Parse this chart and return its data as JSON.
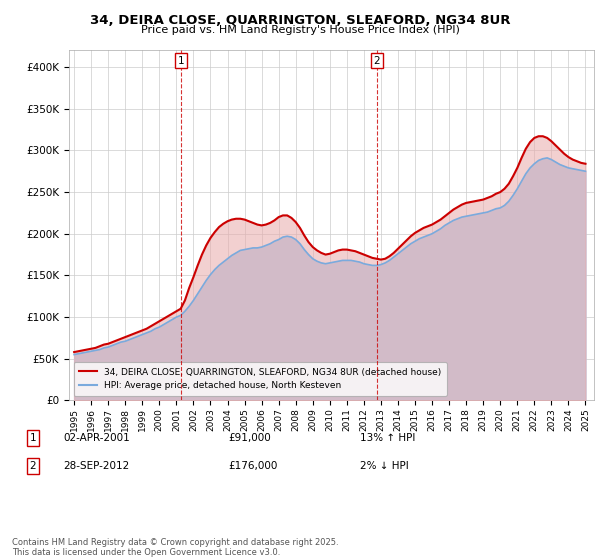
{
  "title": "34, DEIRA CLOSE, QUARRINGTON, SLEAFORD, NG34 8UR",
  "subtitle": "Price paid vs. HM Land Registry's House Price Index (HPI)",
  "yticks": [
    0,
    50000,
    100000,
    150000,
    200000,
    250000,
    300000,
    350000,
    400000
  ],
  "xlim_start": 1994.7,
  "xlim_end": 2025.5,
  "ylim": [
    0,
    420000
  ],
  "legend_label_red": "34, DEIRA CLOSE, QUARRINGTON, SLEAFORD, NG34 8UR (detached house)",
  "legend_label_blue": "HPI: Average price, detached house, North Kesteven",
  "footnote": "Contains HM Land Registry data © Crown copyright and database right 2025.\nThis data is licensed under the Open Government Licence v3.0.",
  "marker1_date": "02-APR-2001",
  "marker1_price": "£91,000",
  "marker1_pct": "13% ↑ HPI",
  "marker1_x": 2001.25,
  "marker2_date": "28-SEP-2012",
  "marker2_price": "£176,000",
  "marker2_pct": "2% ↓ HPI",
  "marker2_x": 2012.75,
  "red_color": "#cc0000",
  "blue_color": "#7aaadd",
  "red_fill": "#e8aaaa",
  "blue_fill": "#b8d0ee",
  "background_color": "#ffffff",
  "grid_color": "#cccccc",
  "hpi_years": [
    1995,
    1995.25,
    1995.5,
    1995.75,
    1996,
    1996.25,
    1996.5,
    1996.75,
    1997,
    1997.25,
    1997.5,
    1997.75,
    1998,
    1998.25,
    1998.5,
    1998.75,
    1999,
    1999.25,
    1999.5,
    1999.75,
    2000,
    2000.25,
    2000.5,
    2000.75,
    2001,
    2001.25,
    2001.5,
    2001.75,
    2002,
    2002.25,
    2002.5,
    2002.75,
    2003,
    2003.25,
    2003.5,
    2003.75,
    2004,
    2004.25,
    2004.5,
    2004.75,
    2005,
    2005.25,
    2005.5,
    2005.75,
    2006,
    2006.25,
    2006.5,
    2006.75,
    2007,
    2007.25,
    2007.5,
    2007.75,
    2008,
    2008.25,
    2008.5,
    2008.75,
    2009,
    2009.25,
    2009.5,
    2009.75,
    2010,
    2010.25,
    2010.5,
    2010.75,
    2011,
    2011.25,
    2011.5,
    2011.75,
    2012,
    2012.25,
    2012.5,
    2012.75,
    2013,
    2013.25,
    2013.5,
    2013.75,
    2014,
    2014.25,
    2014.5,
    2014.75,
    2015,
    2015.25,
    2015.5,
    2015.75,
    2016,
    2016.25,
    2016.5,
    2016.75,
    2017,
    2017.25,
    2017.5,
    2017.75,
    2018,
    2018.25,
    2018.5,
    2018.75,
    2019,
    2019.25,
    2019.5,
    2019.75,
    2020,
    2020.25,
    2020.5,
    2020.75,
    2021,
    2021.25,
    2021.5,
    2021.75,
    2022,
    2022.25,
    2022.5,
    2022.75,
    2023,
    2023.25,
    2023.5,
    2023.75,
    2024,
    2024.25,
    2024.5,
    2024.75,
    2025
  ],
  "hpi_values": [
    55000,
    56000,
    57000,
    58000,
    59000,
    60000,
    61000,
    63000,
    64000,
    66000,
    68000,
    70000,
    71000,
    73000,
    75000,
    77000,
    79000,
    81000,
    83000,
    86000,
    88000,
    91000,
    94000,
    97000,
    100000,
    102000,
    107000,
    113000,
    120000,
    128000,
    136000,
    144000,
    151000,
    157000,
    162000,
    166000,
    170000,
    174000,
    177000,
    180000,
    181000,
    182000,
    183000,
    183000,
    184000,
    186000,
    188000,
    191000,
    193000,
    196000,
    197000,
    196000,
    193000,
    188000,
    181000,
    175000,
    170000,
    167000,
    165000,
    164000,
    165000,
    166000,
    167000,
    168000,
    168000,
    168000,
    167000,
    166000,
    164000,
    163000,
    162000,
    162000,
    163000,
    165000,
    168000,
    172000,
    176000,
    180000,
    184000,
    188000,
    191000,
    194000,
    196000,
    198000,
    200000,
    203000,
    206000,
    210000,
    213000,
    216000,
    218000,
    220000,
    221000,
    222000,
    223000,
    224000,
    225000,
    226000,
    228000,
    230000,
    231000,
    234000,
    239000,
    246000,
    254000,
    263000,
    272000,
    279000,
    284000,
    288000,
    290000,
    291000,
    289000,
    286000,
    283000,
    281000,
    279000,
    278000,
    277000,
    276000,
    275000
  ],
  "red_years": [
    1995,
    1995.25,
    1995.5,
    1995.75,
    1996,
    1996.25,
    1996.5,
    1996.75,
    1997,
    1997.25,
    1997.5,
    1997.75,
    1998,
    1998.25,
    1998.5,
    1998.75,
    1999,
    1999.25,
    1999.5,
    1999.75,
    2000,
    2000.25,
    2000.5,
    2000.75,
    2001,
    2001.25,
    2001.5,
    2001.75,
    2002,
    2002.25,
    2002.5,
    2002.75,
    2003,
    2003.25,
    2003.5,
    2003.75,
    2004,
    2004.25,
    2004.5,
    2004.75,
    2005,
    2005.25,
    2005.5,
    2005.75,
    2006,
    2006.25,
    2006.5,
    2006.75,
    2007,
    2007.25,
    2007.5,
    2007.75,
    2008,
    2008.25,
    2008.5,
    2008.75,
    2009,
    2009.25,
    2009.5,
    2009.75,
    2010,
    2010.25,
    2010.5,
    2010.75,
    2011,
    2011.25,
    2011.5,
    2011.75,
    2012,
    2012.25,
    2012.5,
    2012.75,
    2013,
    2013.25,
    2013.5,
    2013.75,
    2014,
    2014.25,
    2014.5,
    2014.75,
    2015,
    2015.25,
    2015.5,
    2015.75,
    2016,
    2016.25,
    2016.5,
    2016.75,
    2017,
    2017.25,
    2017.5,
    2017.75,
    2018,
    2018.25,
    2018.5,
    2018.75,
    2019,
    2019.25,
    2019.5,
    2019.75,
    2020,
    2020.25,
    2020.5,
    2020.75,
    2021,
    2021.25,
    2021.5,
    2021.75,
    2022,
    2022.25,
    2022.5,
    2022.75,
    2023,
    2023.25,
    2023.5,
    2023.75,
    2024,
    2024.25,
    2024.5,
    2024.75,
    2025
  ],
  "red_values": [
    58000,
    59000,
    60000,
    61000,
    62000,
    63000,
    65000,
    67000,
    68000,
    70000,
    72000,
    74000,
    76000,
    78000,
    80000,
    82000,
    84000,
    86000,
    89000,
    92000,
    95000,
    98000,
    101000,
    104000,
    107000,
    110000,
    120000,
    135000,
    148000,
    162000,
    175000,
    186000,
    195000,
    202000,
    208000,
    212000,
    215000,
    217000,
    218000,
    218000,
    217000,
    215000,
    213000,
    211000,
    210000,
    211000,
    213000,
    216000,
    220000,
    222000,
    222000,
    219000,
    214000,
    207000,
    198000,
    190000,
    184000,
    180000,
    177000,
    175000,
    176000,
    178000,
    180000,
    181000,
    181000,
    180000,
    179000,
    177000,
    175000,
    173000,
    171000,
    170000,
    169000,
    170000,
    173000,
    177000,
    182000,
    187000,
    192000,
    197000,
    201000,
    204000,
    207000,
    209000,
    211000,
    214000,
    217000,
    221000,
    225000,
    229000,
    232000,
    235000,
    237000,
    238000,
    239000,
    240000,
    241000,
    243000,
    245000,
    248000,
    250000,
    254000,
    260000,
    269000,
    279000,
    291000,
    302000,
    310000,
    315000,
    317000,
    317000,
    315000,
    311000,
    306000,
    301000,
    296000,
    292000,
    289000,
    287000,
    285000,
    284000
  ]
}
